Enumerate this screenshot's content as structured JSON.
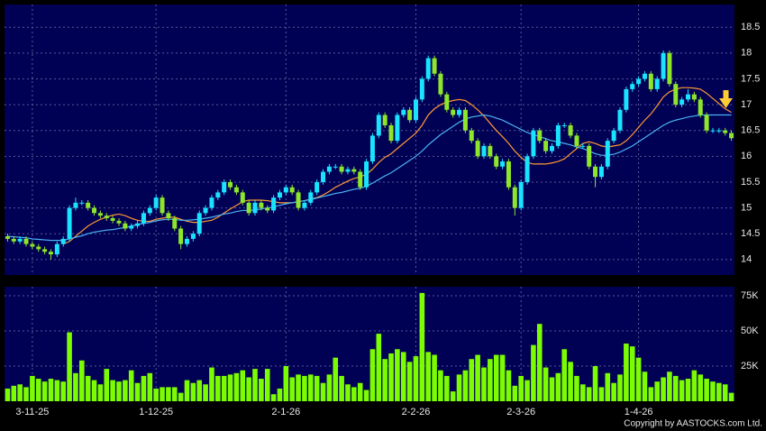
{
  "chart_data": {
    "type": "candlestick",
    "source": "Copyright by AASTOCKS.com Ltd.",
    "up_color": "#19e3ff",
    "down_color": "#8ee62a",
    "grid": true,
    "ylim": [
      13.7,
      18.94
    ],
    "yticks": [
      14,
      14.5,
      15,
      15.5,
      16,
      16.5,
      17,
      17.5,
      18,
      18.5
    ],
    "categories": [
      null,
      null,
      null,
      null,
      "3-11-25",
      null,
      null,
      null,
      null,
      null,
      null,
      null,
      null,
      null,
      null,
      null,
      null,
      null,
      null,
      null,
      null,
      null,
      null,
      null,
      "1-12-25",
      null,
      null,
      null,
      null,
      null,
      null,
      null,
      null,
      null,
      null,
      null,
      null,
      null,
      null,
      null,
      null,
      null,
      null,
      null,
      null,
      "2-1-26",
      null,
      null,
      null,
      null,
      null,
      null,
      null,
      null,
      null,
      null,
      null,
      null,
      null,
      null,
      null,
      null,
      null,
      null,
      null,
      null,
      "2-2-26",
      null,
      null,
      null,
      null,
      null,
      null,
      null,
      null,
      null,
      null,
      null,
      null,
      null,
      null,
      null,
      null,
      "2-3-26",
      null,
      null,
      null,
      null,
      null,
      null,
      null,
      null,
      null,
      null,
      null,
      null,
      null,
      null,
      null,
      null,
      null,
      null,
      "1-4-26",
      null,
      null,
      null,
      null,
      null,
      null,
      null,
      null,
      null,
      null,
      null,
      null,
      null,
      null,
      null
    ],
    "open": [
      14.45,
      14.4,
      14.35,
      14.4,
      14.3,
      14.25,
      14.2,
      14.15,
      14.1,
      14.3,
      14.4,
      15.0,
      15.1,
      15.1,
      15.0,
      14.9,
      14.85,
      14.8,
      14.75,
      14.7,
      14.6,
      14.65,
      14.7,
      14.9,
      15.0,
      15.2,
      14.9,
      14.8,
      14.6,
      14.3,
      14.4,
      14.5,
      14.9,
      15.0,
      15.2,
      15.3,
      15.5,
      15.4,
      15.3,
      15.1,
      14.9,
      15.1,
      15.0,
      14.95,
      15.2,
      15.3,
      15.4,
      15.3,
      15.0,
      15.1,
      15.3,
      15.5,
      15.7,
      15.8,
      15.8,
      15.7,
      15.75,
      15.7,
      15.4,
      15.9,
      16.4,
      16.8,
      16.6,
      16.3,
      16.8,
      16.9,
      16.7,
      17.1,
      17.5,
      17.9,
      17.6,
      17.2,
      16.9,
      16.8,
      16.9,
      16.5,
      16.3,
      16.0,
      16.2,
      16.0,
      15.8,
      15.9,
      15.4,
      15.0,
      15.5,
      16.0,
      16.5,
      16.3,
      16.1,
      16.2,
      16.6,
      16.6,
      16.4,
      16.2,
      16.2,
      15.8,
      15.6,
      15.8,
      16.3,
      16.5,
      16.9,
      17.3,
      17.4,
      17.5,
      17.6,
      17.3,
      17.5,
      18.0,
      17.4,
      17.0,
      17.1,
      17.2,
      17.1,
      16.8,
      16.5,
      16.5,
      16.5,
      16.45
    ],
    "high": [
      14.5,
      14.45,
      14.45,
      14.45,
      14.35,
      14.3,
      14.25,
      14.2,
      14.35,
      14.45,
      15.05,
      15.2,
      15.15,
      15.15,
      15.05,
      14.95,
      14.9,
      14.85,
      14.8,
      14.75,
      14.7,
      14.75,
      14.95,
      15.05,
      15.25,
      15.25,
      14.95,
      14.85,
      14.65,
      14.45,
      14.55,
      14.95,
      15.05,
      15.25,
      15.35,
      15.55,
      15.55,
      15.45,
      15.35,
      15.15,
      15.15,
      15.15,
      15.05,
      15.25,
      15.35,
      15.45,
      15.45,
      15.35,
      15.15,
      15.35,
      15.55,
      15.75,
      15.85,
      15.85,
      15.85,
      15.8,
      15.8,
      15.75,
      15.95,
      16.45,
      16.85,
      16.85,
      16.65,
      16.85,
      16.95,
      16.95,
      17.15,
      17.55,
      17.95,
      17.95,
      17.65,
      17.25,
      16.95,
      16.95,
      16.95,
      16.55,
      16.35,
      16.25,
      16.25,
      16.05,
      15.95,
      15.95,
      15.45,
      15.55,
      16.05,
      16.55,
      16.55,
      16.35,
      16.25,
      16.65,
      16.65,
      16.65,
      16.45,
      16.25,
      16.25,
      15.85,
      15.85,
      16.35,
      16.55,
      16.95,
      17.35,
      17.45,
      17.55,
      17.65,
      17.65,
      17.55,
      18.05,
      18.05,
      17.45,
      17.15,
      17.3,
      17.25,
      17.15,
      16.85,
      16.55,
      16.55,
      16.55,
      16.5
    ],
    "low": [
      14.35,
      14.3,
      14.3,
      14.25,
      14.2,
      14.15,
      14.1,
      14.0,
      14.05,
      14.25,
      14.35,
      14.95,
      15.05,
      14.95,
      14.85,
      14.8,
      14.75,
      14.7,
      14.65,
      14.55,
      14.55,
      14.6,
      14.65,
      14.85,
      14.95,
      14.85,
      14.75,
      14.55,
      14.2,
      14.25,
      14.35,
      14.45,
      14.85,
      14.95,
      15.15,
      15.25,
      15.35,
      15.25,
      15.05,
      14.85,
      14.85,
      14.95,
      14.9,
      14.9,
      15.15,
      15.25,
      15.25,
      14.95,
      14.95,
      15.05,
      15.25,
      15.45,
      15.65,
      15.75,
      15.65,
      15.65,
      15.65,
      15.35,
      15.35,
      15.85,
      16.35,
      16.55,
      16.25,
      16.25,
      16.75,
      16.65,
      16.65,
      17.05,
      17.45,
      17.55,
      17.15,
      16.85,
      16.75,
      16.75,
      16.45,
      16.25,
      15.95,
      15.95,
      15.95,
      15.75,
      15.75,
      15.35,
      14.85,
      14.95,
      15.45,
      15.95,
      16.25,
      16.05,
      16.05,
      16.15,
      16.55,
      16.35,
      16.15,
      16.15,
      15.75,
      15.4,
      15.55,
      15.75,
      16.25,
      16.45,
      16.85,
      17.25,
      17.35,
      17.45,
      17.25,
      17.25,
      17.45,
      17.35,
      16.95,
      16.95,
      17.05,
      17.05,
      16.75,
      16.45,
      16.45,
      16.45,
      16.4,
      16.3
    ],
    "close": [
      14.4,
      14.35,
      14.4,
      14.3,
      14.25,
      14.2,
      14.15,
      14.1,
      14.3,
      14.4,
      15.0,
      15.1,
      15.1,
      15.0,
      14.9,
      14.85,
      14.8,
      14.75,
      14.7,
      14.6,
      14.65,
      14.7,
      14.9,
      15.0,
      15.2,
      14.9,
      14.8,
      14.6,
      14.3,
      14.4,
      14.5,
      14.9,
      15.0,
      15.2,
      15.3,
      15.5,
      15.4,
      15.3,
      15.1,
      14.9,
      15.1,
      15.0,
      14.95,
      15.2,
      15.3,
      15.4,
      15.3,
      15.0,
      15.1,
      15.3,
      15.5,
      15.7,
      15.8,
      15.8,
      15.7,
      15.75,
      15.7,
      15.4,
      15.9,
      16.4,
      16.8,
      16.6,
      16.3,
      16.8,
      16.9,
      16.7,
      17.1,
      17.5,
      17.9,
      17.6,
      17.2,
      16.9,
      16.8,
      16.9,
      16.5,
      16.3,
      16.0,
      16.2,
      16.0,
      15.8,
      15.9,
      15.4,
      15.0,
      15.5,
      16.0,
      16.5,
      16.3,
      16.1,
      16.2,
      16.6,
      16.6,
      16.4,
      16.2,
      16.2,
      15.8,
      15.6,
      15.8,
      16.3,
      16.5,
      16.9,
      17.3,
      17.4,
      17.5,
      17.6,
      17.3,
      17.5,
      18.0,
      17.4,
      17.0,
      17.1,
      17.2,
      17.1,
      16.8,
      16.5,
      16.5,
      16.5,
      16.45,
      16.35
    ],
    "lines": [
      {
        "color": "#ff9933",
        "values": [
          null,
          null,
          null,
          null,
          null,
          null,
          null,
          null,
          null,
          14.3,
          14.35,
          14.45,
          14.55,
          14.65,
          14.72,
          14.78,
          14.82,
          14.86,
          14.88,
          14.85,
          14.8,
          14.76,
          14.74,
          14.74,
          14.78,
          14.8,
          14.82,
          14.82,
          14.78,
          14.74,
          14.72,
          14.72,
          14.74,
          14.76,
          14.82,
          14.9,
          14.98,
          15.05,
          15.12,
          15.15,
          15.15,
          15.15,
          15.14,
          15.12,
          15.1,
          15.1,
          15.1,
          15.12,
          15.14,
          15.17,
          15.2,
          15.25,
          15.32,
          15.4,
          15.46,
          15.52,
          15.57,
          15.6,
          15.65,
          15.75,
          15.88,
          15.98,
          16.05,
          16.15,
          16.25,
          16.35,
          16.45,
          16.6,
          16.8,
          16.92,
          17.0,
          17.05,
          17.08,
          17.1,
          17.08,
          17.0,
          16.9,
          16.78,
          16.64,
          16.5,
          16.38,
          16.25,
          16.1,
          15.98,
          15.88,
          15.85,
          15.85,
          15.85,
          15.87,
          15.9,
          15.95,
          16.05,
          16.15,
          16.25,
          16.28,
          16.25,
          16.2,
          16.18,
          16.2,
          16.22,
          16.3,
          16.42,
          16.56,
          16.7,
          16.82,
          16.98,
          17.15,
          17.25,
          17.3,
          17.33,
          17.33,
          17.32,
          17.3,
          17.22,
          17.12,
          17.02,
          16.92,
          16.85
        ]
      },
      {
        "color": "#4ab4f0",
        "values": [
          14.45,
          14.44,
          14.43,
          14.42,
          14.4,
          14.39,
          14.38,
          14.37,
          14.37,
          14.37,
          14.4,
          14.43,
          14.46,
          14.5,
          14.53,
          14.55,
          14.57,
          14.58,
          14.6,
          14.62,
          14.65,
          14.68,
          14.7,
          14.72,
          14.75,
          14.77,
          14.78,
          14.78,
          14.76,
          14.76,
          14.77,
          14.78,
          14.8,
          14.82,
          14.85,
          14.88,
          14.9,
          14.93,
          14.95,
          14.95,
          14.96,
          14.98,
          15.0,
          15.02,
          15.05,
          15.08,
          15.1,
          15.12,
          15.14,
          15.16,
          15.19,
          15.22,
          15.25,
          15.28,
          15.3,
          15.33,
          15.36,
          15.38,
          15.42,
          15.48,
          15.55,
          15.62,
          15.68,
          15.76,
          15.84,
          15.92,
          16.0,
          16.1,
          16.22,
          16.32,
          16.42,
          16.5,
          16.58,
          16.66,
          16.72,
          16.76,
          16.78,
          16.8,
          16.78,
          16.74,
          16.7,
          16.64,
          16.58,
          16.52,
          16.46,
          16.42,
          16.38,
          16.34,
          16.3,
          16.28,
          16.25,
          16.22,
          16.18,
          16.15,
          16.1,
          16.05,
          16.02,
          16.02,
          16.04,
          16.08,
          16.14,
          16.2,
          16.28,
          16.36,
          16.44,
          16.52,
          16.6,
          16.66,
          16.7,
          16.73,
          16.76,
          16.78,
          16.8,
          16.8,
          16.8,
          16.8,
          16.8,
          16.8
        ]
      }
    ],
    "volume": {
      "color": "#7cfc00",
      "ylim": [
        0,
        81400
      ],
      "yticks": [
        {
          "value": 25000,
          "label": "25K"
        },
        {
          "value": 50000,
          "label": "50K"
        },
        {
          "value": 75000,
          "label": "75K"
        }
      ],
      "values": [
        9000,
        11000,
        12000,
        10000,
        18000,
        16000,
        14000,
        16000,
        15000,
        14000,
        49000,
        20000,
        29000,
        18000,
        15000,
        12000,
        23000,
        15000,
        14000,
        15000,
        22000,
        13000,
        18000,
        20000,
        9000,
        10000,
        10000,
        10000,
        6000,
        15000,
        13000,
        15000,
        12000,
        24000,
        18000,
        18000,
        19000,
        20000,
        22000,
        17000,
        23000,
        16000,
        23000,
        5000,
        9000,
        25000,
        17000,
        19000,
        18000,
        19000,
        18000,
        13000,
        19000,
        31000,
        18000,
        12000,
        10000,
        13000,
        8000,
        37000,
        48000,
        30000,
        34000,
        37000,
        35000,
        28000,
        32000,
        77000,
        35000,
        33000,
        22000,
        18000,
        7000,
        19000,
        22000,
        30000,
        33000,
        24000,
        30000,
        33000,
        33000,
        22000,
        11000,
        18000,
        15000,
        40000,
        55000,
        24000,
        17000,
        20000,
        37000,
        28000,
        18000,
        12000,
        10000,
        25000,
        10000,
        20000,
        13000,
        19000,
        41000,
        39000,
        31000,
        21000,
        10000,
        14000,
        17000,
        21000,
        18000,
        15000,
        16000,
        22000,
        19000,
        16000,
        14000,
        13000,
        12000,
        6000
      ]
    }
  }
}
